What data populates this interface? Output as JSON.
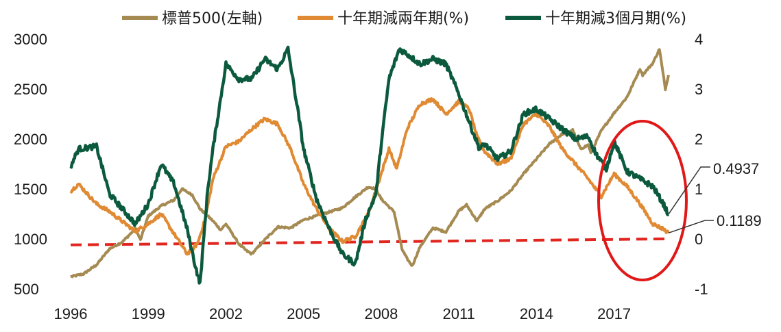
{
  "chart_data": {
    "type": "line",
    "x_ticks": [
      "1996",
      "1999",
      "2002",
      "2005",
      "2008",
      "2011",
      "2014",
      "2017"
    ],
    "x_range": [
      1996.0,
      2019.5
    ],
    "left_axis": {
      "ticks": [
        "500",
        "1000",
        "1500",
        "2000",
        "2500",
        "3000"
      ],
      "range": [
        500,
        3000
      ]
    },
    "right_axis": {
      "ticks": [
        "-1",
        "0",
        "1",
        "2",
        "3",
        "4"
      ],
      "range": [
        -1,
        4
      ]
    },
    "series": [
      {
        "name": "標普500(左軸)",
        "axis": "left",
        "color": "#a58a52",
        "x": [
          1996.0,
          1996.5,
          1997.0,
          1997.5,
          1998.0,
          1998.5,
          1998.7,
          1999.0,
          1999.5,
          2000.0,
          2000.3,
          2000.7,
          2001.0,
          2001.5,
          2001.8,
          2002.0,
          2002.5,
          2002.8,
          2003.0,
          2003.5,
          2004.0,
          2004.5,
          2005.0,
          2005.5,
          2006.0,
          2006.5,
          2007.0,
          2007.5,
          2007.8,
          2008.0,
          2008.5,
          2008.8,
          2009.0,
          2009.2,
          2009.5,
          2010.0,
          2010.5,
          2011.0,
          2011.3,
          2011.7,
          2012.0,
          2012.5,
          2013.0,
          2013.5,
          2014.0,
          2014.5,
          2015.0,
          2015.4,
          2015.7,
          2016.0,
          2016.1,
          2016.5,
          2017.0,
          2017.5,
          2018.0,
          2018.1,
          2018.5,
          2018.75,
          2018.98,
          2019.1
        ],
        "y": [
          620,
          650,
          740,
          900,
          970,
          1100,
          990,
          1230,
          1330,
          1390,
          1500,
          1440,
          1300,
          1180,
          1090,
          1150,
          950,
          880,
          850,
          990,
          1120,
          1110,
          1190,
          1230,
          1270,
          1310,
          1420,
          1520,
          1500,
          1400,
          1270,
          900,
          800,
          730,
          920,
          1110,
          1070,
          1280,
          1340,
          1180,
          1300,
          1380,
          1480,
          1650,
          1800,
          1950,
          2050,
          2090,
          1900,
          1940,
          1860,
          2080,
          2260,
          2420,
          2700,
          2640,
          2760,
          2900,
          2500,
          2640
        ]
      },
      {
        "name": "十年期減兩年期(%)",
        "axis": "right",
        "color": "#e08a33",
        "x": [
          1996.0,
          1996.3,
          1997.0,
          1997.5,
          1998.0,
          1998.5,
          1999.0,
          1999.5,
          2000.0,
          2000.5,
          2000.9,
          2001.2,
          2001.5,
          2002.0,
          2002.5,
          2003.0,
          2003.5,
          2004.0,
          2004.5,
          2005.0,
          2005.5,
          2006.0,
          2006.5,
          2007.0,
          2007.5,
          2008.0,
          2008.3,
          2008.6,
          2009.0,
          2009.5,
          2010.0,
          2010.5,
          2011.0,
          2011.4,
          2011.7,
          2012.0,
          2012.5,
          2013.0,
          2013.5,
          2014.0,
          2014.5,
          2015.0,
          2015.5,
          2016.0,
          2016.5,
          2017.0,
          2017.5,
          2018.0,
          2018.5,
          2018.9,
          2019.1
        ],
        "y": [
          0.95,
          1.1,
          0.7,
          0.55,
          0.35,
          0.15,
          0.3,
          0.5,
          0.1,
          -0.3,
          -0.1,
          0.4,
          1.2,
          1.85,
          1.95,
          2.2,
          2.4,
          2.3,
          1.8,
          1.1,
          0.6,
          0.2,
          -0.05,
          0.05,
          0.5,
          1.3,
          1.8,
          1.4,
          2.2,
          2.7,
          2.8,
          2.5,
          2.75,
          2.6,
          2.05,
          1.75,
          1.5,
          1.6,
          2.3,
          2.5,
          2.25,
          1.8,
          1.5,
          1.2,
          0.85,
          1.3,
          1.05,
          0.7,
          0.3,
          0.2,
          0.1189
        ]
      },
      {
        "name": "十年期減3個月期(%)",
        "axis": "right",
        "color": "#0c5a3e",
        "x": [
          1996.0,
          1996.3,
          1997.0,
          1997.5,
          1998.0,
          1998.5,
          1999.0,
          1999.5,
          2000.0,
          2000.5,
          2000.8,
          2001.0,
          2001.3,
          2001.5,
          2002.0,
          2002.5,
          2003.0,
          2003.5,
          2004.0,
          2004.4,
          2004.8,
          2005.0,
          2005.5,
          2006.0,
          2006.5,
          2007.0,
          2007.4,
          2007.8,
          2008.0,
          2008.3,
          2008.7,
          2009.0,
          2009.5,
          2010.0,
          2010.5,
          2011.0,
          2011.5,
          2011.8,
          2012.0,
          2012.5,
          2013.0,
          2013.5,
          2014.0,
          2014.5,
          2015.0,
          2015.5,
          2016.0,
          2016.3,
          2016.7,
          2017.0,
          2017.5,
          2018.0,
          2018.5,
          2018.9,
          2019.1
        ],
        "y": [
          1.45,
          1.8,
          1.85,
          0.9,
          0.6,
          0.3,
          0.7,
          1.5,
          1.1,
          0.2,
          -0.5,
          -0.9,
          1.0,
          1.8,
          3.5,
          3.2,
          3.2,
          3.6,
          3.4,
          3.8,
          2.5,
          1.8,
          0.8,
          0.2,
          -0.3,
          -0.5,
          0.4,
          0.9,
          1.9,
          3.2,
          3.8,
          3.7,
          3.5,
          3.6,
          3.5,
          2.9,
          2.2,
          1.8,
          1.9,
          1.6,
          1.75,
          2.5,
          2.6,
          2.4,
          2.2,
          2.0,
          2.05,
          1.7,
          1.4,
          1.95,
          1.35,
          1.2,
          1.05,
          0.7,
          0.4937
        ]
      }
    ],
    "reference_line": {
      "axis": "right",
      "from": [
        1996.0,
        -0.12
      ],
      "to": [
        2019.0,
        0.0
      ],
      "color": "#e0261f",
      "style": "dashed"
    },
    "annotations": [
      {
        "label": "0.4937",
        "series": "十年期減3個月期(%)"
      },
      {
        "label": "0.1189",
        "series": "十年期減兩年期(%)"
      }
    ],
    "highlight": {
      "shape": "ellipse",
      "color": "#e01818",
      "center": [
        2017.5,
        1.3
      ],
      "radius": [
        1.6,
        1.6
      ]
    },
    "legend": {
      "placement": "top-center"
    },
    "grid": false
  }
}
